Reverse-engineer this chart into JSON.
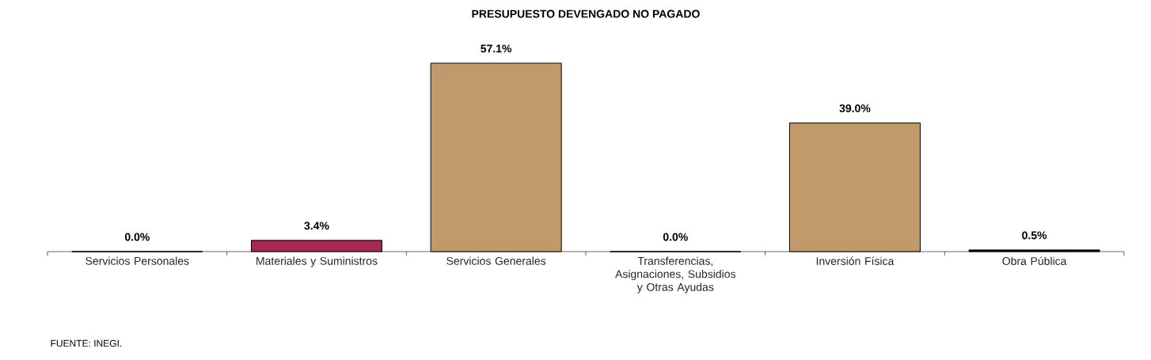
{
  "chart_data": {
    "type": "bar",
    "title": "PRESUPUESTO DEVENGADO NO PAGADO",
    "categories": [
      "Servicios Personales",
      "Materiales y Suministros",
      "Servicios Generales",
      "Transferencias, Asignaciones, Subsidios y Otras Ayudas",
      "Inversión Física",
      "Obra Pública"
    ],
    "values": [
      0.0,
      3.4,
      57.1,
      0.0,
      39.0,
      0.5
    ],
    "colors": [
      "#c09a6b",
      "#a4284f",
      "#c09a6b",
      "#c09a6b",
      "#c09a6b",
      "#000000"
    ],
    "value_labels": [
      "0.0%",
      "3.4%",
      "57.1%",
      "0.0%",
      "39.0%",
      "0.5%"
    ],
    "annotations": [
      "FUENTE: INEGI."
    ]
  }
}
